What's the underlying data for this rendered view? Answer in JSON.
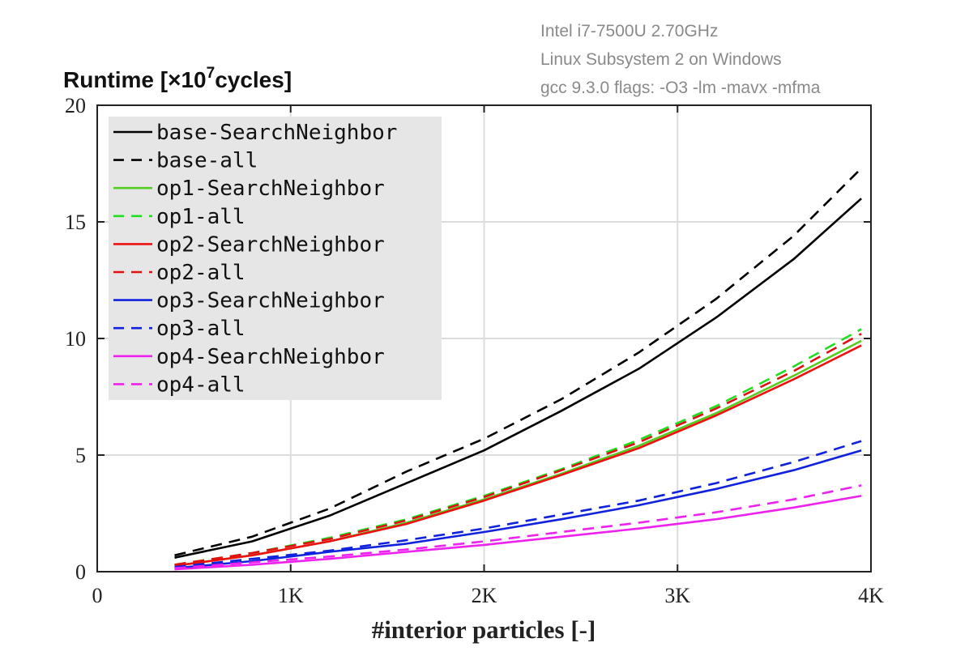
{
  "notes": [
    "Intel i7-7500U 2.70GHz",
    "Linux Subsystem 2 on Windows",
    "gcc 9.3.0 flags: -O3 -lm -mavx -mfma"
  ],
  "chart_data": {
    "type": "line",
    "title": "",
    "ylabel_main": "Runtime [×10",
    "ylabel_sup": "7",
    "ylabel_tail": "cycles]",
    "xlabel": "#interior particles [-]",
    "xlim": [
      0,
      4000
    ],
    "ylim": [
      0,
      20
    ],
    "xticks": [
      0,
      1000,
      2000,
      3000,
      4000
    ],
    "xtick_labels": [
      "0",
      "1K",
      "2K",
      "3K",
      "4K"
    ],
    "yticks": [
      0,
      5,
      10,
      15,
      20
    ],
    "ytick_labels": [
      "0",
      "5",
      "10",
      "15",
      "20"
    ],
    "grid": true,
    "legend_position": "top-left",
    "x": [
      400,
      800,
      1200,
      1600,
      2000,
      2400,
      2800,
      3200,
      3600,
      3950
    ],
    "series": [
      {
        "name": "base-SearchNeighbor",
        "color": "#000000",
        "dash": "solid",
        "values": [
          0.6,
          1.3,
          2.4,
          3.8,
          5.2,
          6.9,
          8.7,
          10.9,
          13.4,
          16.0
        ]
      },
      {
        "name": "base-all",
        "color": "#000000",
        "dash": "dashed",
        "values": [
          0.7,
          1.5,
          2.7,
          4.3,
          5.7,
          7.4,
          9.4,
          11.7,
          14.4,
          17.3
        ]
      },
      {
        "name": "op1-SearchNeighbor",
        "color": "#55cc22",
        "dash": "solid",
        "values": [
          0.25,
          0.7,
          1.3,
          2.1,
          3.1,
          4.2,
          5.4,
          6.8,
          8.4,
          9.9
        ]
      },
      {
        "name": "op1-all",
        "color": "#22dd22",
        "dash": "dashed",
        "values": [
          0.3,
          0.8,
          1.45,
          2.25,
          3.25,
          4.4,
          5.65,
          7.1,
          8.8,
          10.4
        ]
      },
      {
        "name": "op2-SearchNeighbor",
        "color": "#ee1111",
        "dash": "solid",
        "values": [
          0.25,
          0.7,
          1.3,
          2.05,
          3.05,
          4.15,
          5.3,
          6.7,
          8.25,
          9.7
        ]
      },
      {
        "name": "op2-all",
        "color": "#dd1111",
        "dash": "dashed",
        "values": [
          0.3,
          0.8,
          1.4,
          2.2,
          3.2,
          4.35,
          5.55,
          7.0,
          8.6,
          10.2
        ]
      },
      {
        "name": "op3-SearchNeighbor",
        "color": "#1122dd",
        "dash": "solid",
        "values": [
          0.15,
          0.45,
          0.85,
          1.2,
          1.7,
          2.25,
          2.85,
          3.55,
          4.35,
          5.2
        ]
      },
      {
        "name": "op3-all",
        "color": "#1122dd",
        "dash": "dashed",
        "values": [
          0.2,
          0.55,
          0.9,
          1.35,
          1.85,
          2.45,
          3.05,
          3.8,
          4.7,
          5.6
        ]
      },
      {
        "name": "op4-SearchNeighbor",
        "color": "#ee22ee",
        "dash": "solid",
        "values": [
          0.1,
          0.3,
          0.55,
          0.85,
          1.15,
          1.5,
          1.85,
          2.25,
          2.75,
          3.25
        ]
      },
      {
        "name": "op4-all",
        "color": "#ee22ee",
        "dash": "dashed",
        "values": [
          0.15,
          0.4,
          0.65,
          0.95,
          1.3,
          1.7,
          2.1,
          2.55,
          3.1,
          3.7
        ]
      }
    ]
  }
}
